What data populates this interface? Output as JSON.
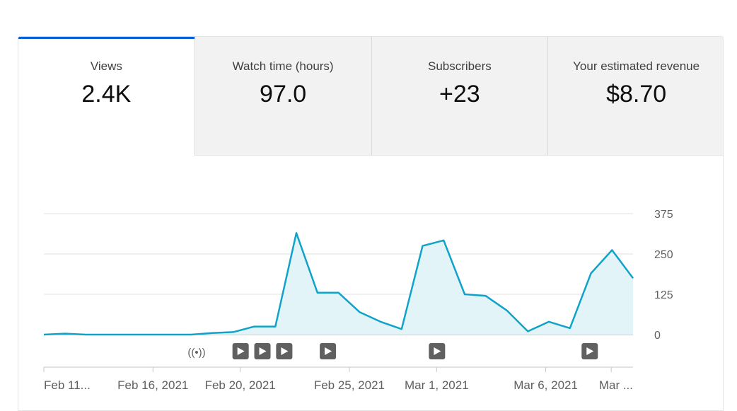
{
  "tabs": [
    {
      "label": "Views",
      "value": "2.4K",
      "active": true
    },
    {
      "label": "Watch time (hours)",
      "value": "97.0",
      "active": false
    },
    {
      "label": "Subscribers",
      "value": "+23",
      "active": false
    },
    {
      "label": "Your estimated revenue",
      "value": "$8.70",
      "active": false
    }
  ],
  "colors": {
    "accent": "#065fd4",
    "line": "#10a3c9",
    "area": "#e3f4f8",
    "marker": "#606060"
  },
  "chart_data": {
    "type": "area",
    "ylim": [
      0,
      375
    ],
    "y_ticks": [
      "0",
      "125",
      "250",
      "375"
    ],
    "x_tick_labels": [
      "Feb 11...",
      "Feb 16, 2021",
      "Feb 20, 2021",
      "Feb 25, 2021",
      "Mar 1, 2021",
      "Mar 6, 2021",
      "Mar ..."
    ],
    "x_tick_days": [
      0,
      5,
      9,
      14,
      18,
      23,
      26
    ],
    "x_days": 27,
    "values": [
      0,
      3,
      0,
      0,
      0,
      0,
      0,
      0,
      5,
      8,
      25,
      25,
      315,
      130,
      130,
      70,
      40,
      17,
      275,
      292,
      125,
      120,
      75,
      10,
      40,
      20,
      190,
      262,
      175
    ],
    "events": [
      {
        "icon": "live-icon",
        "day": 7
      },
      {
        "icon": "video-icon",
        "day": 9
      },
      {
        "icon": "video-icon",
        "day": 10
      },
      {
        "icon": "video-icon",
        "day": 11
      },
      {
        "icon": "video-icon",
        "day": 13
      },
      {
        "icon": "video-icon",
        "day": 18
      },
      {
        "icon": "video-icon",
        "day": 25
      }
    ]
  }
}
